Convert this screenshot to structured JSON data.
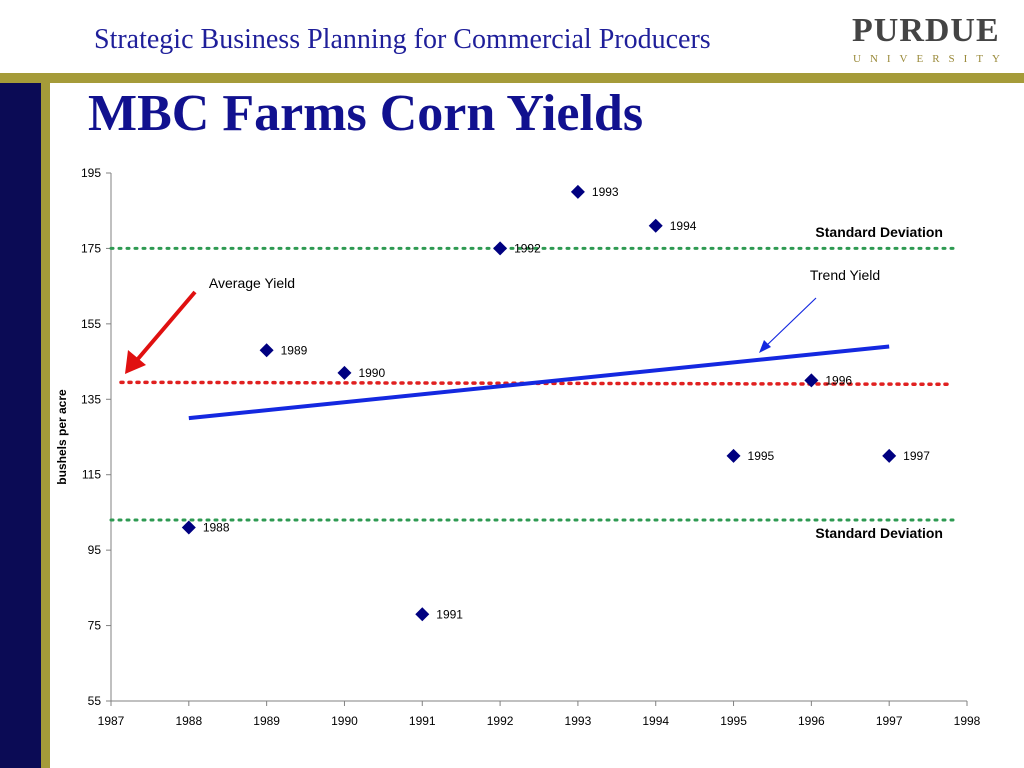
{
  "header": {
    "subtitle": "Strategic Business Planning for Commercial Producers",
    "logo_word": "PURDUE",
    "logo_sub": "UNIVERSITY"
  },
  "slide": {
    "title": "MBC Farms Corn Yields"
  },
  "colors": {
    "title_blue": "#11118f",
    "header_blue": "#1f1f9a",
    "accent_gold": "#a59b39",
    "navy_bar": "#0b0b55",
    "marker": "#000080",
    "trend_line": "#1428e0",
    "average_line": "#e02020",
    "std_dev_line": "#2e9a52",
    "arrow_red": "#e01010"
  },
  "chart_data": {
    "type": "scatter",
    "title": "",
    "xlabel": "",
    "ylabel": "bushels per acre",
    "xlim": [
      1987,
      1998
    ],
    "ylim": [
      55,
      195
    ],
    "x_ticks": [
      1987,
      1988,
      1989,
      1990,
      1991,
      1992,
      1993,
      1994,
      1995,
      1996,
      1997,
      1998
    ],
    "y_ticks": [
      55,
      75,
      95,
      115,
      135,
      155,
      175,
      195
    ],
    "grid": false,
    "points": [
      {
        "x": 1988,
        "y": 101,
        "label": "1988"
      },
      {
        "x": 1989,
        "y": 148,
        "label": "1989"
      },
      {
        "x": 1990,
        "y": 142,
        "label": "1990"
      },
      {
        "x": 1991,
        "y": 78,
        "label": "1991"
      },
      {
        "x": 1992,
        "y": 175,
        "label": "1992"
      },
      {
        "x": 1993,
        "y": 190,
        "label": "1993"
      },
      {
        "x": 1994,
        "y": 181,
        "label": "1994"
      },
      {
        "x": 1995,
        "y": 120,
        "label": "1995"
      },
      {
        "x": 1996,
        "y": 140,
        "label": "1996"
      },
      {
        "x": 1997,
        "y": 120,
        "label": "1997"
      }
    ],
    "trend_line": {
      "x": [
        1988,
        1997
      ],
      "y": [
        130,
        149
      ],
      "label": "Trend Yield"
    },
    "average_line": {
      "y": 139.5,
      "label": "Average Yield"
    },
    "std_dev_lines": [
      {
        "y": 175,
        "label": "Standard Deviation"
      },
      {
        "y": 103,
        "label": "Standard Deviation"
      }
    ]
  }
}
